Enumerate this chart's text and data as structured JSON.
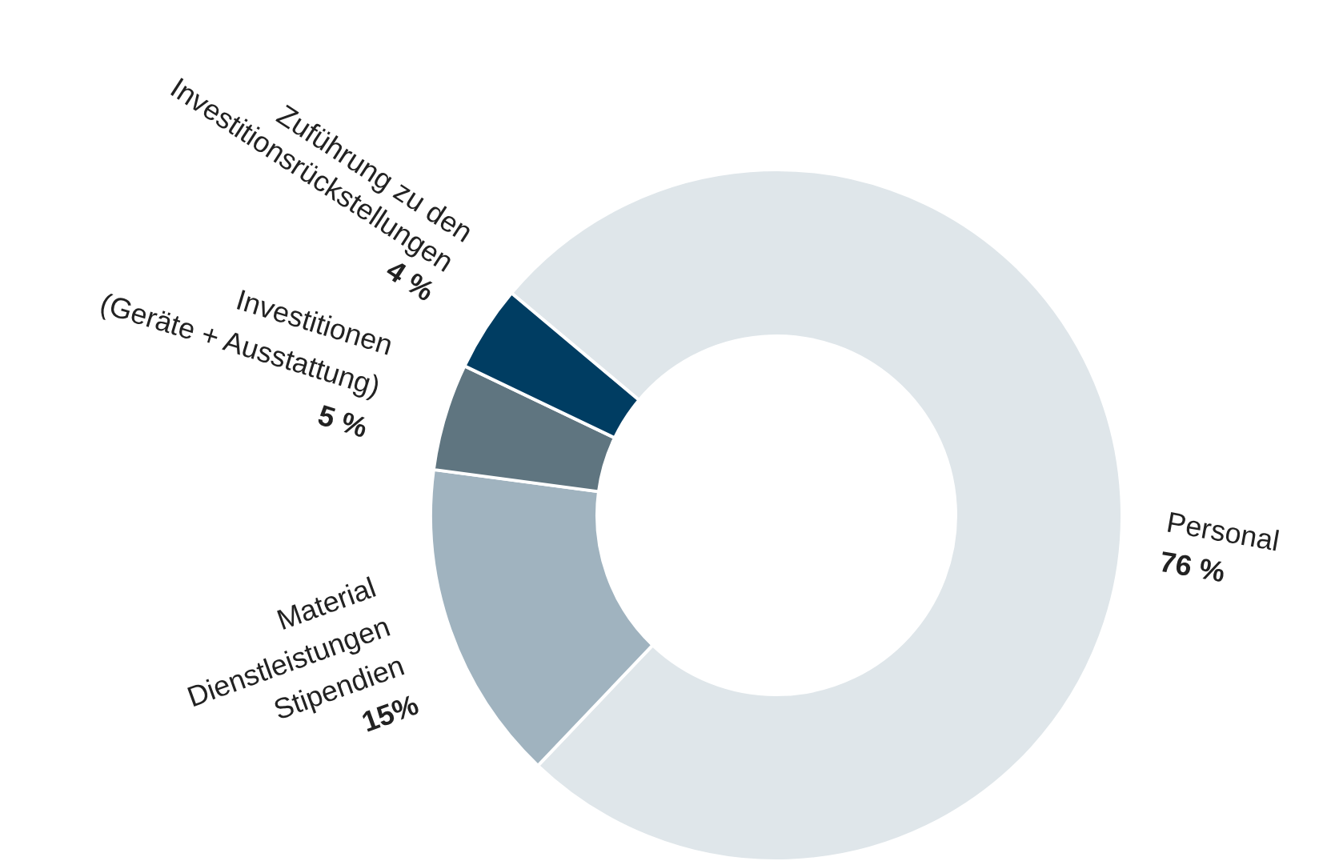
{
  "chart_data": {
    "type": "donut",
    "categories": [
      "Personal",
      "Material\nDienstleistungen\nStipendien",
      "Investitionen\n(Geräte + Ausstattung)",
      "Zuführung zu den\nInvestitionsrückstellungen"
    ],
    "values": [
      76,
      15,
      5,
      4
    ],
    "colors": [
      "#dfe6ea",
      "#a0b3bf",
      "#5f7580",
      "#003d62"
    ],
    "value_labels": [
      "76 %",
      "15%",
      "5 %",
      "4 %"
    ]
  }
}
